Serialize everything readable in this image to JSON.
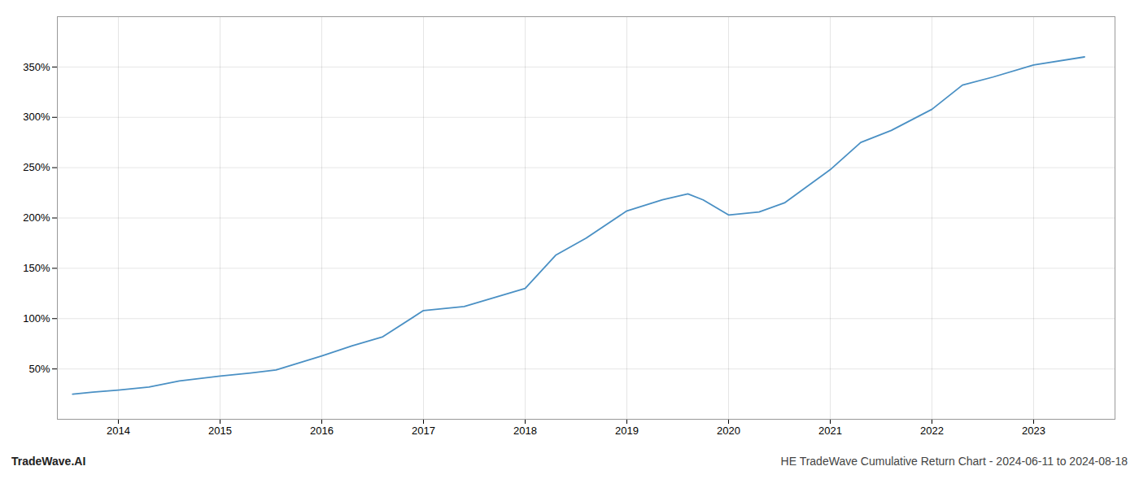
{
  "chart_data": {
    "type": "line",
    "title": "HE TradeWave Cumulative Return Chart - 2024-06-11 to 2024-08-18",
    "annotations": [
      "TradeWave.AI"
    ],
    "x": [
      2013.55,
      2013.75,
      2014.0,
      2014.3,
      2014.6,
      2015.0,
      2015.3,
      2015.55,
      2016.0,
      2016.3,
      2016.6,
      2017.0,
      2017.4,
      2018.0,
      2018.3,
      2018.6,
      2019.0,
      2019.35,
      2019.6,
      2019.75,
      2020.0,
      2020.3,
      2020.55,
      2021.0,
      2021.3,
      2021.6,
      2022.0,
      2022.3,
      2022.6,
      2023.0,
      2023.5
    ],
    "values": [
      25,
      27,
      29,
      32,
      38,
      43,
      46,
      49,
      63,
      73,
      82,
      108,
      112,
      130,
      163,
      180,
      207,
      218,
      224,
      218,
      203,
      206,
      215,
      248,
      275,
      287,
      308,
      332,
      340,
      352,
      360
    ],
    "color": "#4a90c4",
    "xlim": [
      2013.4,
      2023.8
    ],
    "xticks": [
      2014,
      2015,
      2016,
      2017,
      2018,
      2019,
      2020,
      2021,
      2022,
      2023
    ],
    "ylim": [
      0,
      400
    ],
    "yticks": [
      {
        "value": 50,
        "label": "50%"
      },
      {
        "value": 100,
        "label": "100%"
      },
      {
        "value": 150,
        "label": "150%"
      },
      {
        "value": 200,
        "label": "200%"
      },
      {
        "value": 250,
        "label": "250%"
      },
      {
        "value": 300,
        "label": "300%"
      },
      {
        "value": 350,
        "label": "350%"
      }
    ],
    "grid": true
  }
}
